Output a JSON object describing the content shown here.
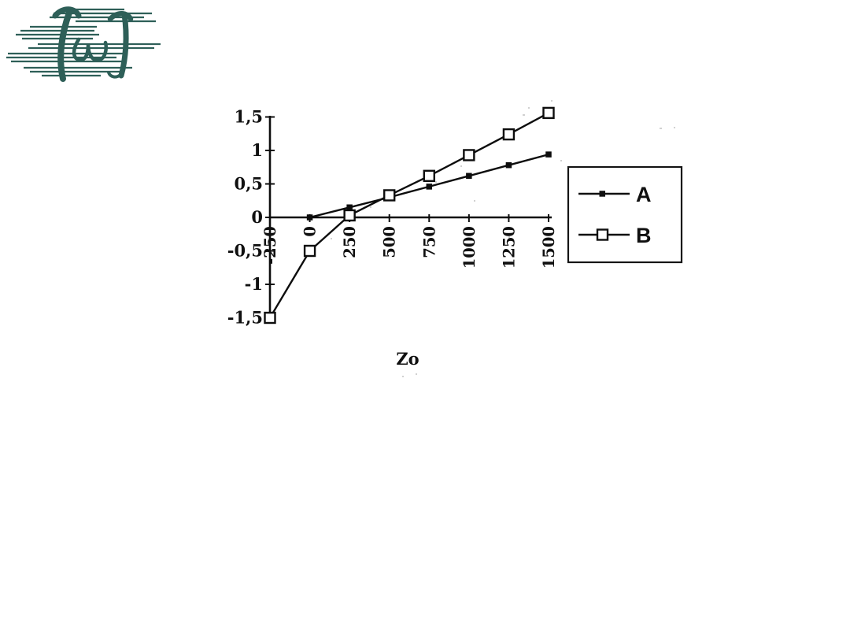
{
  "logo": {
    "name": "script-monogram-logo",
    "color": "#2e5f58"
  },
  "chart_data": {
    "type": "line",
    "title": "",
    "xlabel": "Zo",
    "ylabel": "",
    "xlim": [
      -250,
      1500
    ],
    "ylim": [
      -1.5,
      1.5
    ],
    "grid": false,
    "x_tick_labels": [
      "-250",
      "0",
      "250",
      "500",
      "750",
      "1000",
      "1250",
      "1500"
    ],
    "x": [
      -250,
      0,
      250,
      500,
      750,
      1000,
      1250,
      1500
    ],
    "y_tick_labels": [
      "1,5",
      "1",
      "0,5",
      "0",
      "-0,5",
      "-1",
      "-1,5"
    ],
    "y_tick_values": [
      1.5,
      1,
      0.5,
      0,
      -0.5,
      -1,
      -1.5
    ],
    "series": [
      {
        "name": "A",
        "marker": "filled-square",
        "values": [
          null,
          0,
          0.15,
          0.3,
          0.46,
          0.62,
          0.78,
          0.94
        ]
      },
      {
        "name": "B",
        "marker": "open-square",
        "values": [
          -1.5,
          -0.5,
          0.03,
          0.33,
          0.62,
          0.93,
          1.24,
          1.56
        ]
      }
    ],
    "legend": {
      "position": "right",
      "entries": [
        "A",
        "B"
      ]
    }
  }
}
